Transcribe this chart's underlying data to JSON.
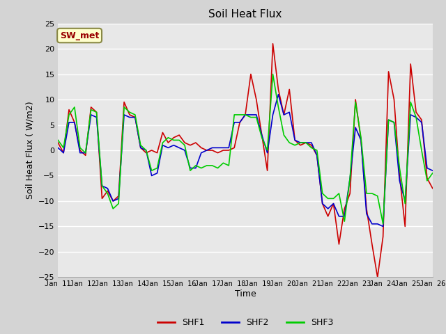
{
  "title": "Soil Heat Flux",
  "xlabel": "Time",
  "ylabel": "Soil Heat Flux ( W/m2)",
  "ylim": [
    -25,
    25
  ],
  "yticks": [
    -25,
    -20,
    -15,
    -10,
    -5,
    0,
    5,
    10,
    15,
    20,
    25
  ],
  "x_labels": [
    "Jan 11",
    "Jan 12",
    "Jan 13",
    "Jan 14",
    "Jan 15",
    "Jan 16",
    "Jan 17",
    "Jan 18",
    "Jan 19",
    "Jan 20",
    "Jan 21",
    "Jan 22",
    "Jan 23",
    "Jan 24",
    "Jan 25",
    "Jan 26"
  ],
  "annotation_text": "SW_met",
  "annotation_bg": "#ffffcc",
  "annotation_border": "#888844",
  "annotation_text_color": "#990000",
  "line_colors": {
    "SHF1": "#cc0000",
    "SHF2": "#0000cc",
    "SHF3": "#00cc00"
  },
  "bg_color": "#e8e8e8",
  "fig_bg_color": "#d4d4d4",
  "grid_color": "#ffffff",
  "SHF1": [
    1.5,
    -0.5,
    8.0,
    5.5,
    0.0,
    -1.0,
    8.5,
    7.5,
    -9.5,
    -8.0,
    -10.0,
    -9.0,
    9.5,
    7.0,
    6.5,
    0.5,
    -0.5,
    0.0,
    -0.5,
    3.5,
    1.5,
    2.5,
    3.0,
    1.5,
    1.0,
    1.5,
    0.5,
    0.0,
    0.0,
    -0.5,
    0.0,
    0.0,
    0.5,
    5.5,
    7.0,
    15.0,
    10.0,
    3.0,
    -4.0,
    21.0,
    12.0,
    7.0,
    12.0,
    2.0,
    1.0,
    1.5,
    1.0,
    -1.0,
    -10.5,
    -13.0,
    -10.5,
    -18.5,
    -11.5,
    -8.5,
    10.0,
    2.0,
    -11.5,
    -18.5,
    -25.0,
    -17.0,
    15.5,
    10.0,
    -5.0,
    -15.0,
    17.0,
    7.5,
    6.0,
    -5.5,
    -7.5
  ],
  "SHF2": [
    0.5,
    -0.5,
    5.5,
    5.5,
    -0.5,
    -0.5,
    7.0,
    6.5,
    -7.0,
    -7.5,
    -10.0,
    -9.5,
    7.0,
    6.5,
    6.5,
    0.5,
    0.0,
    -5.0,
    -4.5,
    1.0,
    0.5,
    1.0,
    0.5,
    0.0,
    -3.5,
    -3.5,
    -0.5,
    0.0,
    0.5,
    0.5,
    0.5,
    0.5,
    5.5,
    5.5,
    7.0,
    7.0,
    7.0,
    3.0,
    -0.5,
    7.0,
    11.0,
    7.0,
    7.5,
    2.0,
    1.5,
    1.5,
    1.5,
    -1.0,
    -10.5,
    -11.5,
    -10.5,
    -13.0,
    -13.0,
    -5.5,
    4.5,
    2.0,
    -12.5,
    -14.5,
    -14.5,
    -15.0,
    6.0,
    5.5,
    -6.0,
    -10.0,
    7.0,
    6.5,
    5.5,
    -3.5,
    -4.0
  ],
  "SHF3": [
    2.0,
    0.5,
    7.0,
    8.5,
    0.5,
    -0.5,
    8.0,
    7.5,
    -7.0,
    -8.5,
    -11.5,
    -10.5,
    8.5,
    7.5,
    7.0,
    1.0,
    0.0,
    -4.0,
    -3.5,
    1.5,
    2.5,
    2.0,
    2.0,
    1.0,
    -4.0,
    -3.0,
    -3.5,
    -3.0,
    -3.0,
    -3.5,
    -2.5,
    -3.0,
    7.0,
    7.0,
    7.0,
    6.5,
    6.5,
    2.5,
    0.0,
    15.0,
    8.5,
    3.0,
    1.5,
    1.0,
    1.5,
    1.5,
    0.5,
    0.0,
    -8.5,
    -9.5,
    -9.5,
    -8.5,
    -14.0,
    -5.5,
    9.5,
    2.5,
    -8.5,
    -8.5,
    -9.0,
    -14.5,
    6.0,
    5.5,
    -3.5,
    -10.5,
    9.5,
    6.5,
    0.0,
    -6.0,
    -4.5
  ]
}
